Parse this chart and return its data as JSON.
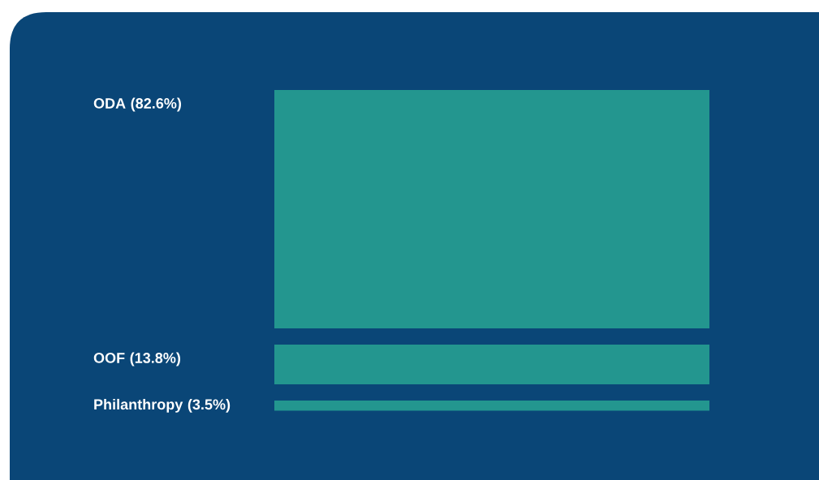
{
  "chart_data": {
    "type": "other",
    "categories": [
      "ODA",
      "OOF",
      "Philanthropy"
    ],
    "values": [
      82.6,
      13.8,
      3.5
    ],
    "value_labels": [
      "(82.6%)",
      "(13.8%)",
      "(3.5%)"
    ],
    "colors": [
      "#23968f",
      "#23968f",
      "#23968f"
    ]
  }
}
